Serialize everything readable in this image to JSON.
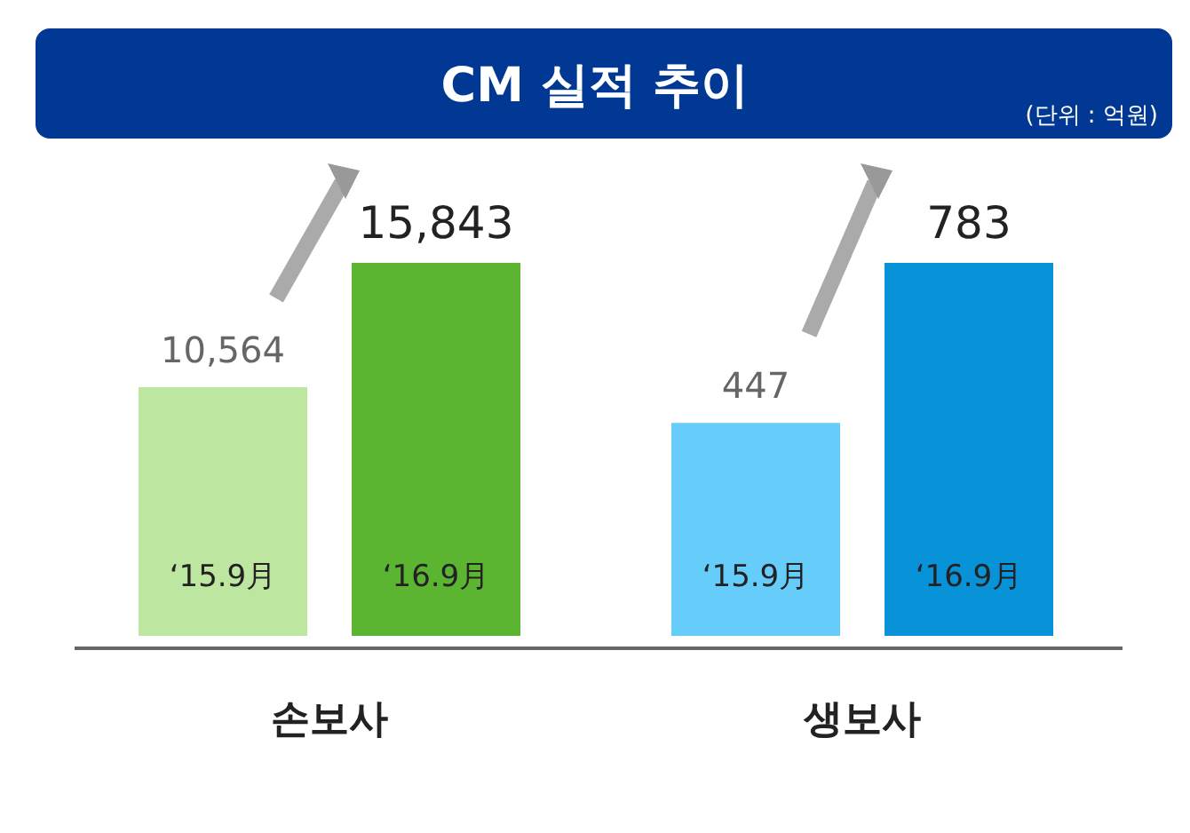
{
  "chart_data": [
    {
      "type": "bar",
      "title": "CM 실적 추이",
      "annotations": [
        "(단위 : 억원)"
      ],
      "xlabel": "손보사",
      "categories": [
        "‘15.9月",
        "‘16.9月"
      ],
      "values": [
        10564,
        15843
      ],
      "colors": [
        "#bde6a0",
        "#5cb531"
      ],
      "value_labels": [
        "10,564",
        "15,843"
      ]
    },
    {
      "type": "bar",
      "xlabel": "생보사",
      "categories": [
        "‘15.9月",
        "‘16.9月"
      ],
      "values": [
        447,
        783
      ],
      "colors": [
        "#66ccfa",
        "#0893d9"
      ],
      "value_labels": [
        "447",
        "783"
      ]
    }
  ]
}
